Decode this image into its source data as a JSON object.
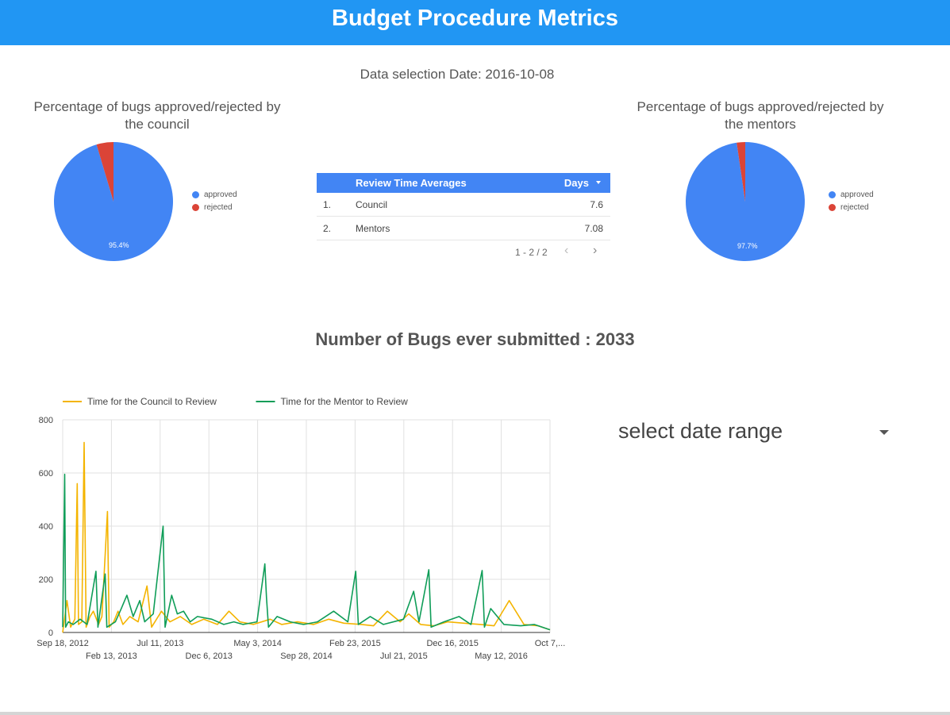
{
  "header": {
    "title": "Budget Procedure Metrics"
  },
  "selection": {
    "label": "Data selection Date: 2016-10-08"
  },
  "council_pie": {
    "title_line1": "Percentage of bugs approved/rejected by",
    "title_line2": "the council",
    "approved_pct": 95.4,
    "approved_label": "95.4%",
    "legend": [
      {
        "label": "approved",
        "color": "#4285f4"
      },
      {
        "label": "rejected",
        "color": "#db4437"
      }
    ]
  },
  "mentor_pie": {
    "title_line1": "Percentage of bugs approved/rejected by",
    "title_line2": "the mentors",
    "approved_pct": 97.7,
    "approved_label": "97.7%",
    "legend": [
      {
        "label": "approved",
        "color": "#4285f4"
      },
      {
        "label": "rejected",
        "color": "#db4437"
      }
    ]
  },
  "review_table": {
    "columns": {
      "name": "Review Time Averages",
      "value": "Days"
    },
    "rows": [
      {
        "index": "1.",
        "name": "Council",
        "value": "7.6"
      },
      {
        "index": "2.",
        "name": "Mentors",
        "value": "7.08"
      }
    ],
    "pagination": "1 - 2 / 2"
  },
  "bug_count": {
    "label": "Number of Bugs ever submitted : 2033"
  },
  "date_range": {
    "label": "select date range"
  },
  "chart_data": {
    "type": "line",
    "title": "",
    "xlabel": "",
    "ylabel": "",
    "ylim": [
      0,
      800
    ],
    "yticks": [
      "0",
      "200",
      "400",
      "600",
      "800"
    ],
    "xticks": [
      "Sep 18, 2012",
      "Feb 13, 2013",
      "Jul 11, 2013",
      "Dec 6, 2013",
      "May 3, 2014",
      "Sep 28, 2014",
      "Feb 23, 2015",
      "Jul 21, 2015",
      "Dec 16, 2015",
      "May 12, 2016",
      "Oct 7,..."
    ],
    "grid": true,
    "legend_position": "top-left",
    "x_start": "2012-09-18",
    "x_end": "2016-10-07",
    "series": [
      {
        "name": "Time for the Council to Review",
        "color": "#f4b400",
        "points": [
          [
            "2012-09-18",
            0
          ],
          [
            "2012-10-01",
            120
          ],
          [
            "2012-10-12",
            20
          ],
          [
            "2012-10-25",
            50
          ],
          [
            "2012-11-01",
            560
          ],
          [
            "2012-11-05",
            30
          ],
          [
            "2012-11-15",
            40
          ],
          [
            "2012-11-22",
            715
          ],
          [
            "2012-11-28",
            20
          ],
          [
            "2012-12-10",
            60
          ],
          [
            "2012-12-20",
            80
          ],
          [
            "2013-01-05",
            30
          ],
          [
            "2013-01-15",
            60
          ],
          [
            "2013-02-01",
            455
          ],
          [
            "2013-02-06",
            20
          ],
          [
            "2013-02-20",
            40
          ],
          [
            "2013-03-05",
            80
          ],
          [
            "2013-03-20",
            30
          ],
          [
            "2013-04-10",
            60
          ],
          [
            "2013-05-05",
            40
          ],
          [
            "2013-06-01",
            175
          ],
          [
            "2013-06-15",
            20
          ],
          [
            "2013-07-15",
            80
          ],
          [
            "2013-08-10",
            40
          ],
          [
            "2013-09-10",
            60
          ],
          [
            "2013-10-15",
            30
          ],
          [
            "2013-11-20",
            50
          ],
          [
            "2014-01-01",
            30
          ],
          [
            "2014-02-05",
            80
          ],
          [
            "2014-03-10",
            40
          ],
          [
            "2014-04-20",
            30
          ],
          [
            "2014-06-10",
            50
          ],
          [
            "2014-07-15",
            30
          ],
          [
            "2014-09-01",
            40
          ],
          [
            "2014-10-20",
            30
          ],
          [
            "2014-12-05",
            50
          ],
          [
            "2015-01-20",
            35
          ],
          [
            "2015-03-15",
            30
          ],
          [
            "2015-04-20",
            25
          ],
          [
            "2015-06-01",
            80
          ],
          [
            "2015-07-10",
            40
          ],
          [
            "2015-08-05",
            70
          ],
          [
            "2015-09-10",
            30
          ],
          [
            "2015-10-20",
            25
          ],
          [
            "2015-12-01",
            40
          ],
          [
            "2016-01-20",
            35
          ],
          [
            "2016-03-10",
            30
          ],
          [
            "2016-04-20",
            25
          ],
          [
            "2016-06-05",
            120
          ],
          [
            "2016-07-20",
            30
          ],
          [
            "2016-09-01",
            25
          ],
          [
            "2016-10-07",
            10
          ]
        ]
      },
      {
        "name": "Time for the Mentor to Review",
        "color": "#0f9d58",
        "points": [
          [
            "2012-09-18",
            20
          ],
          [
            "2012-09-24",
            595
          ],
          [
            "2012-09-27",
            20
          ],
          [
            "2012-10-05",
            40
          ],
          [
            "2012-10-20",
            30
          ],
          [
            "2012-11-10",
            50
          ],
          [
            "2012-12-01",
            30
          ],
          [
            "2012-12-28",
            230
          ],
          [
            "2013-01-03",
            20
          ],
          [
            "2013-01-25",
            220
          ],
          [
            "2013-01-30",
            20
          ],
          [
            "2013-02-25",
            40
          ],
          [
            "2013-03-15",
            90
          ],
          [
            "2013-04-01",
            140
          ],
          [
            "2013-04-20",
            60
          ],
          [
            "2013-05-10",
            120
          ],
          [
            "2013-05-25",
            40
          ],
          [
            "2013-06-20",
            70
          ],
          [
            "2013-07-20",
            400
          ],
          [
            "2013-07-26",
            20
          ],
          [
            "2013-08-15",
            140
          ],
          [
            "2013-09-01",
            70
          ],
          [
            "2013-09-20",
            80
          ],
          [
            "2013-10-10",
            40
          ],
          [
            "2013-11-01",
            60
          ],
          [
            "2013-12-15",
            50
          ],
          [
            "2014-01-20",
            30
          ],
          [
            "2014-02-20",
            40
          ],
          [
            "2014-03-20",
            30
          ],
          [
            "2014-05-01",
            40
          ],
          [
            "2014-05-25",
            258
          ],
          [
            "2014-05-30",
            130
          ],
          [
            "2014-06-05",
            20
          ],
          [
            "2014-07-01",
            60
          ],
          [
            "2014-08-10",
            40
          ],
          [
            "2014-09-20",
            30
          ],
          [
            "2014-11-01",
            40
          ],
          [
            "2014-12-20",
            80
          ],
          [
            "2015-02-01",
            40
          ],
          [
            "2015-02-25",
            230
          ],
          [
            "2015-03-05",
            30
          ],
          [
            "2015-04-10",
            60
          ],
          [
            "2015-05-20",
            30
          ],
          [
            "2015-07-20",
            50
          ],
          [
            "2015-08-20",
            155
          ],
          [
            "2015-09-05",
            40
          ],
          [
            "2015-10-05",
            236
          ],
          [
            "2015-10-12",
            20
          ],
          [
            "2015-11-20",
            40
          ],
          [
            "2016-01-05",
            60
          ],
          [
            "2016-02-10",
            30
          ],
          [
            "2016-03-15",
            233
          ],
          [
            "2016-03-22",
            20
          ],
          [
            "2016-04-10",
            90
          ],
          [
            "2016-05-20",
            30
          ],
          [
            "2016-07-10",
            25
          ],
          [
            "2016-08-20",
            30
          ],
          [
            "2016-10-07",
            10
          ]
        ]
      }
    ]
  }
}
